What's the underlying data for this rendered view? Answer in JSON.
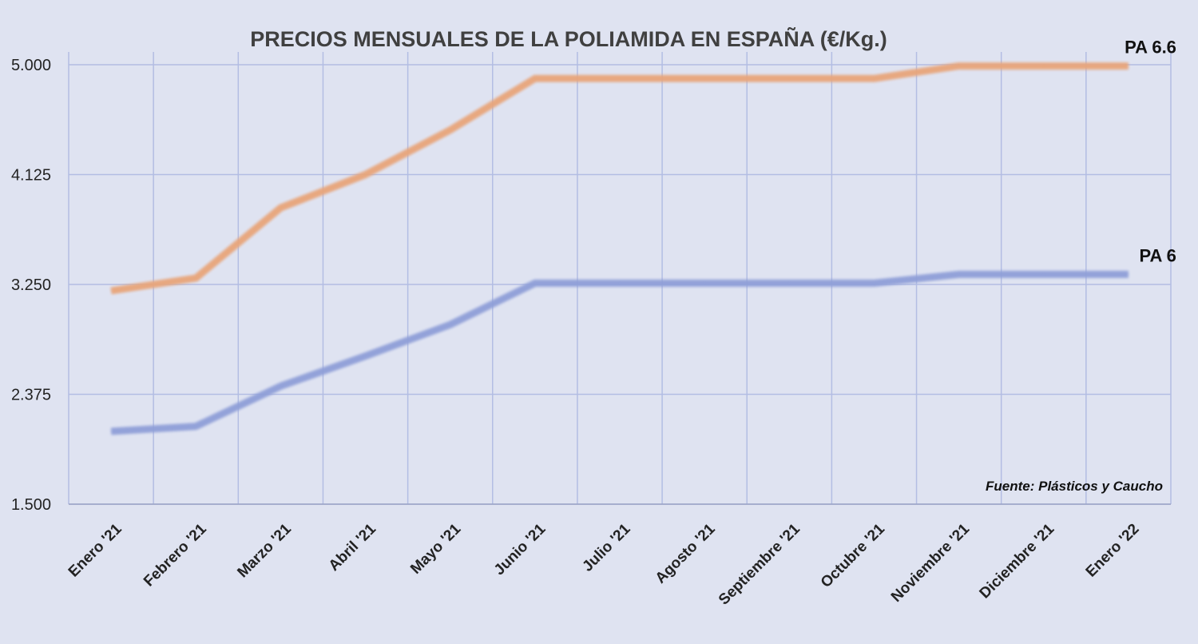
{
  "chart_data": {
    "type": "line",
    "title": "PRECIOS MENSUALES DE LA POLIAMIDA EN ESPAÑA (€/Kg.)",
    "xlabel": "",
    "ylabel": "",
    "categories": [
      "Enero '21",
      "Febrero '21",
      "Marzo '21",
      "Abril '21",
      "Mayo '21",
      "Junio '21",
      "Julio '21",
      "Agosto '21",
      "Septiembre '21",
      "Octubre '21",
      "Noviembre '21",
      "Diciembre '21",
      "Enero '22"
    ],
    "ylim": [
      1500,
      5000
    ],
    "yticks": [
      1500,
      2375,
      3250,
      4125,
      5000
    ],
    "ytick_labels": [
      "1.500",
      "2.375",
      "3.250",
      "4.125",
      "5.000"
    ],
    "grid": true,
    "series": [
      {
        "name": "PA 6.6",
        "color": "#e8a57a",
        "values": [
          3200,
          3300,
          3860,
          4125,
          4480,
          4890,
          4890,
          4890,
          4890,
          4890,
          4990,
          4990,
          4990
        ]
      },
      {
        "name": "PA 6",
        "color": "#8f9fd8",
        "values": [
          2080,
          2120,
          2440,
          2680,
          2930,
          3260,
          3260,
          3260,
          3260,
          3260,
          3330,
          3330,
          3330
        ]
      }
    ],
    "annotations": [
      "Fuente: Plásticos y Caucho"
    ]
  }
}
